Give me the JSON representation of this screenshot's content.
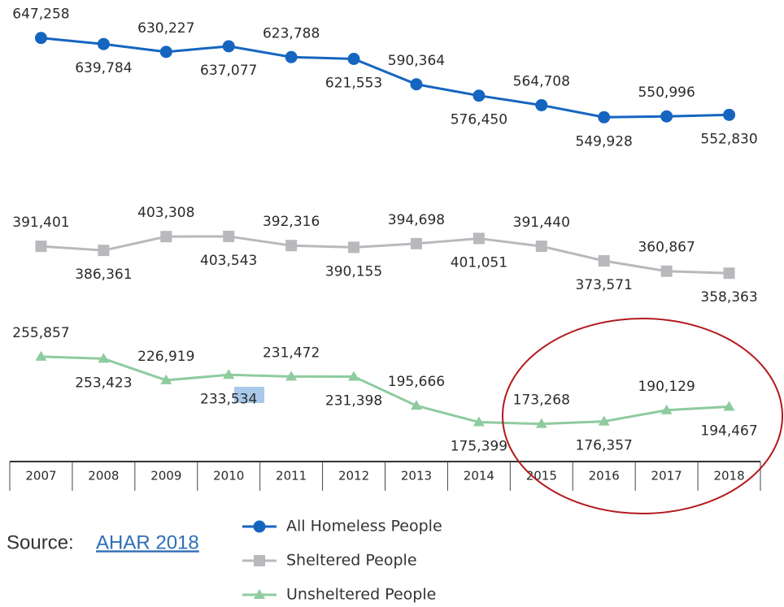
{
  "chart_data": {
    "type": "line",
    "categories": [
      "2007",
      "2008",
      "2009",
      "2010",
      "2011",
      "2012",
      "2013",
      "2014",
      "2015",
      "2016",
      "2017",
      "2018"
    ],
    "ylim": [
      150000,
      650000
    ],
    "series": [
      {
        "name": "All Homeless People",
        "color": "#1565c0",
        "marker": "circle",
        "values": [
          647258,
          639784,
          630227,
          637077,
          623788,
          621553,
          590364,
          576450,
          564708,
          549928,
          550996,
          552830
        ],
        "value_labels": [
          "647,258",
          "639,784",
          "630,227",
          "637,077",
          "623,788",
          "621,553",
          "590,364",
          "576,450",
          "564,708",
          "549,928",
          "550,996",
          "552,830"
        ]
      },
      {
        "name": "Sheltered People",
        "color": "#b9b9bd",
        "marker": "square",
        "values": [
          391401,
          386361,
          403308,
          403543,
          392316,
          390155,
          394698,
          401051,
          391440,
          373571,
          360867,
          358363
        ],
        "value_labels": [
          "391,401",
          "386,361",
          "403,308",
          "403,543",
          "392,316",
          "390,155",
          "394,698",
          "401,051",
          "391,440",
          "373,571",
          "360,867",
          "358,363"
        ]
      },
      {
        "name": "Unsheltered People",
        "color": "#8ecb9f",
        "marker": "triangle",
        "values": [
          255857,
          253423,
          226919,
          233534,
          231472,
          231398,
          195666,
          175399,
          173268,
          176357,
          190129,
          194467
        ],
        "value_labels": [
          "255,857",
          "253,423",
          "226,919",
          "233,534",
          "231,472",
          "231,398",
          "195,666",
          "175,399",
          "173,268",
          "176,357",
          "190,129",
          "194,467"
        ]
      }
    ]
  },
  "source": {
    "label": "Source:",
    "link": "AHAR 2018"
  }
}
